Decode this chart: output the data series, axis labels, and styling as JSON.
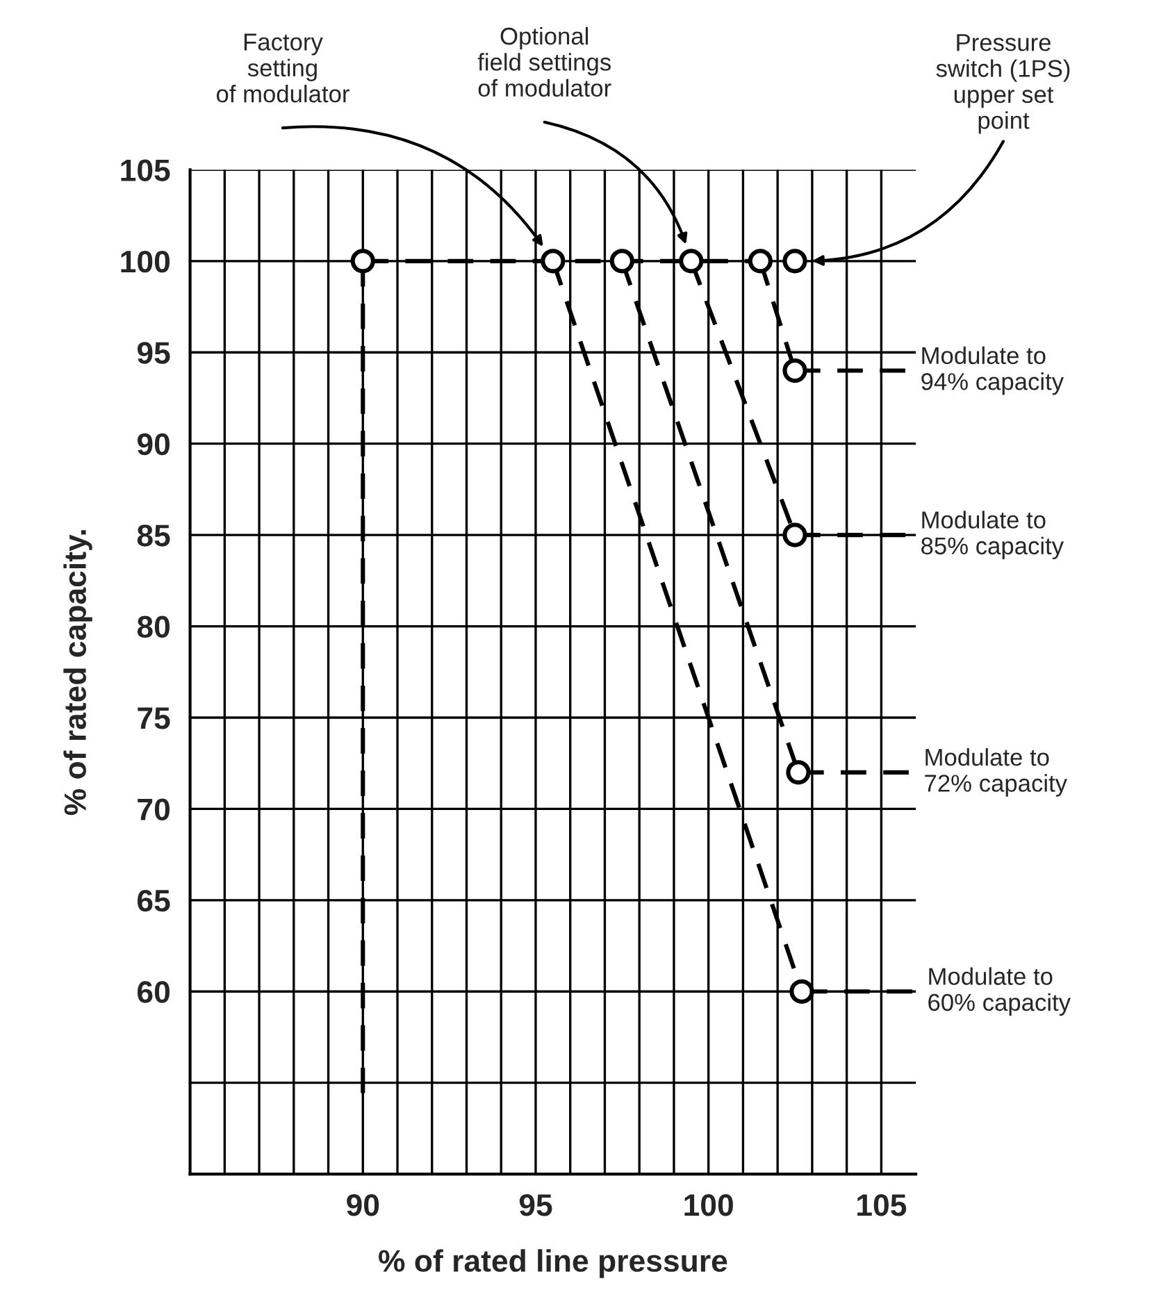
{
  "chart_data": {
    "type": "line",
    "xlabel": "% of rated line pressure",
    "ylabel": "% of rated capacity.",
    "xlim": [
      85,
      106
    ],
    "ylim": [
      50,
      105
    ],
    "xticks": [
      {
        "value": 86,
        "label": null
      },
      {
        "value": 87,
        "label": null
      },
      {
        "value": 88,
        "label": null
      },
      {
        "value": 89,
        "label": null
      },
      90,
      {
        "value": 91,
        "label": null
      },
      {
        "value": 92,
        "label": null
      },
      {
        "value": 93,
        "label": null
      },
      {
        "value": 94,
        "label": null
      },
      95,
      {
        "value": 96,
        "label": null
      },
      {
        "value": 97,
        "label": null
      },
      {
        "value": 98,
        "label": null
      },
      {
        "value": 99,
        "label": null
      },
      100,
      {
        "value": 101,
        "label": null
      },
      {
        "value": 102,
        "label": null
      },
      {
        "value": 103,
        "label": null
      },
      {
        "value": 104,
        "label": null
      },
      105
    ],
    "yticks": [
      {
        "value": 55,
        "label": null
      },
      60,
      65,
      70,
      75,
      80,
      85,
      90,
      95,
      100,
      105
    ],
    "grid": true,
    "legend": false,
    "series": [
      {
        "type": "line",
        "line_style": "dashed",
        "color": "#000000",
        "x": [
          90,
          102.5
        ],
        "values": [
          100,
          100
        ]
      },
      {
        "type": "line",
        "line_style": "dashed",
        "color": "#000000",
        "x": [
          90,
          90
        ],
        "values": [
          100,
          54
        ]
      },
      {
        "type": "line",
        "line_style": "dashed",
        "color": "#000000",
        "x": [
          95.5,
          102.7
        ],
        "values": [
          100,
          60
        ]
      },
      {
        "type": "line",
        "line_style": "dashed",
        "color": "#000000",
        "x": [
          97.5,
          102.6
        ],
        "values": [
          100,
          72
        ]
      },
      {
        "type": "line",
        "line_style": "dashed",
        "color": "#000000",
        "x": [
          99.5,
          102.5
        ],
        "values": [
          100,
          85
        ]
      },
      {
        "type": "line",
        "line_style": "dashed",
        "color": "#000000",
        "x": [
          101.5,
          102.5
        ],
        "values": [
          100,
          94
        ]
      },
      {
        "type": "line",
        "line_style": "dashed",
        "color": "#000000",
        "x": [
          102.5,
          106
        ],
        "values": [
          94,
          94
        ]
      },
      {
        "type": "line",
        "line_style": "dashed",
        "color": "#000000",
        "x": [
          102.5,
          106
        ],
        "values": [
          85,
          85
        ]
      },
      {
        "type": "line",
        "line_style": "dashed",
        "color": "#000000",
        "x": [
          102.6,
          106
        ],
        "values": [
          72,
          72
        ]
      },
      {
        "type": "line",
        "line_style": "dashed",
        "color": "#000000",
        "x": [
          102.7,
          106
        ],
        "values": [
          60,
          60
        ]
      },
      {
        "type": "scatter",
        "marker": "circle",
        "color": "#000000",
        "x": [
          90,
          95.5,
          97.5,
          99.5,
          101.5,
          102.5,
          102.5,
          102.5,
          102.6,
          102.7
        ],
        "values": [
          100,
          100,
          100,
          100,
          100,
          100,
          94,
          85,
          72,
          60
        ]
      }
    ],
    "annotations": [
      "Factory\nsetting\nof modulator",
      "Optional\nfield settings\nof modulator",
      "Pressure\nswitch (1PS)\nupper set\npoint",
      "Modulate to\n94% capacity",
      "Modulate to\n85% capacity",
      "Modulate to\n72% capacity",
      "Modulate to\n60% capacity"
    ]
  }
}
